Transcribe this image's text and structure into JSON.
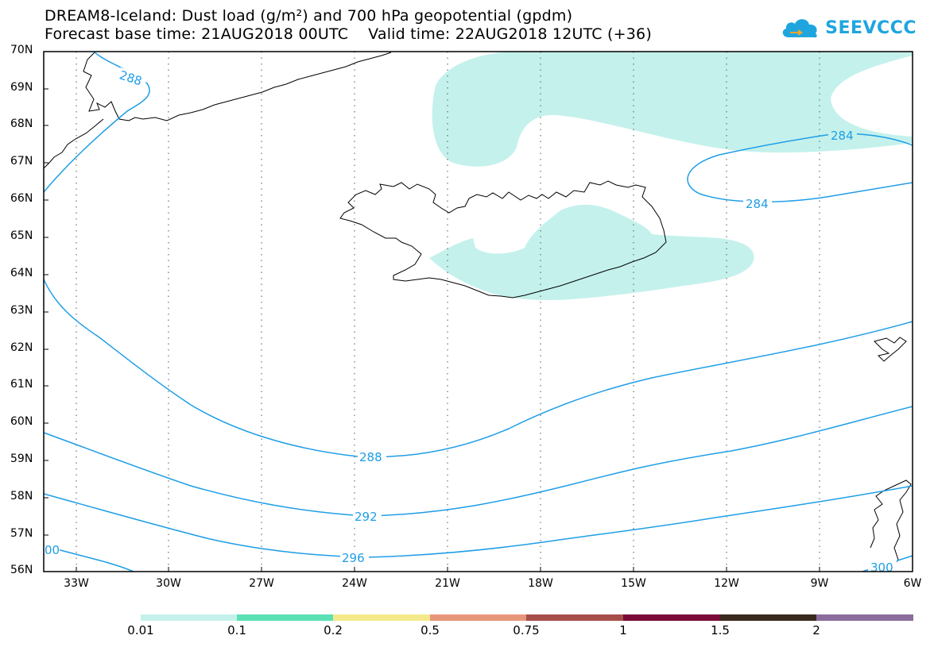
{
  "title_line1": "DREAM8-Iceland: Dust load (g/m²) and 700 hPa geopotential (gpdm)",
  "title_line2": "Forecast base time: 21AUG2018 00UTC    Valid time: 22AUG2018 12UTC (+36)",
  "logo": {
    "text": "SEEVCCC",
    "icon": "cloud-icon",
    "color": "#1fa5de"
  },
  "map": {
    "lat_ticks": [
      "70N",
      "69N",
      "68N",
      "67N",
      "66N",
      "65N",
      "64N",
      "63N",
      "62N",
      "61N",
      "60N",
      "59N",
      "58N",
      "57N",
      "56N"
    ],
    "lon_ticks": [
      "33W",
      "30W",
      "27W",
      "24W",
      "21W",
      "18W",
      "15W",
      "12W",
      "9W",
      "6W"
    ],
    "contour_color": "#1e9ee6",
    "contour_labels": [
      "288",
      "284",
      "284",
      "288",
      "292",
      "296",
      "300",
      "00"
    ],
    "dust_fill_color": "#c4f1ec"
  },
  "colorbar": {
    "labels": [
      "0.01",
      "0.1",
      "0.2",
      "0.5",
      "0.75",
      "1",
      "1.5",
      "2"
    ],
    "colors": [
      "#c4f1ec",
      "#5ce1b4",
      "#f4e98a",
      "#e8967a",
      "#a84e4a",
      "#7a0a38",
      "#3a2a1e",
      "#8c6c9c"
    ]
  }
}
